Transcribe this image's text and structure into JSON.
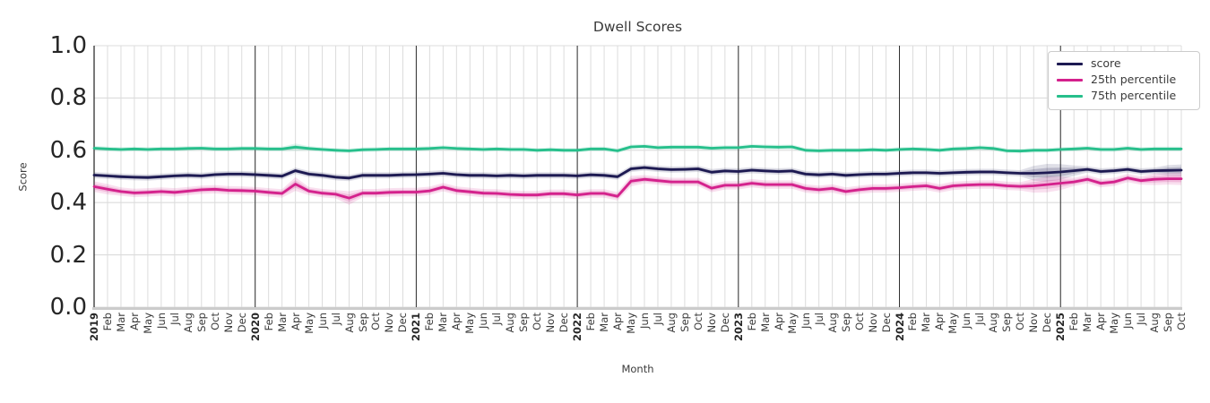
{
  "chart_data": {
    "type": "line",
    "title": "Dwell Scores",
    "xlabel": "Month",
    "ylabel": "Score",
    "ylim": [
      0.0,
      1.0
    ],
    "grid": true,
    "legend_position": "upper right",
    "ytick_labels": [
      "0.0",
      "0.2",
      "0.4",
      "0.6",
      "0.8",
      "1.0"
    ],
    "yticks": [
      0.0,
      0.2,
      0.4,
      0.6,
      0.8,
      1.0
    ],
    "x_labels": [
      "2019",
      "Feb",
      "Mar",
      "Apr",
      "May",
      "Jun",
      "Jul",
      "Aug",
      "Sep",
      "Oct",
      "Nov",
      "Dec",
      "2020",
      "Feb",
      "Mar",
      "Apr",
      "May",
      "Jun",
      "Jul",
      "Aug",
      "Sep",
      "Oct",
      "Nov",
      "Dec",
      "2021",
      "Feb",
      "Mar",
      "Apr",
      "May",
      "Jun",
      "Jul",
      "Aug",
      "Sep",
      "Oct",
      "Nov",
      "Dec",
      "2022",
      "Feb",
      "Mar",
      "Apr",
      "May",
      "Jun",
      "Jul",
      "Aug",
      "Sep",
      "Oct",
      "Nov",
      "Dec",
      "2023",
      "Feb",
      "Mar",
      "Apr",
      "May",
      "Jun",
      "Jul",
      "Aug",
      "Sep",
      "Oct",
      "Nov",
      "Dec",
      "2024",
      "Feb",
      "Mar",
      "Apr",
      "May",
      "Jun",
      "Jul",
      "Aug",
      "Sep",
      "Oct",
      "Nov",
      "Dec",
      "2025",
      "Feb",
      "Mar",
      "Apr",
      "May",
      "Jun",
      "Jul",
      "Aug",
      "Sep",
      "Oct"
    ],
    "colors": {
      "grid": "#dcdcdc",
      "year_line": "#2f2f2f",
      "axis_spine": "#303030",
      "bottom_spine": "#cbcbcb",
      "text": "#3a3a3a"
    },
    "series": [
      {
        "name": "score",
        "color": "#1d1a52",
        "band_halfwidth": 0.012,
        "band_overrides": {
          "70": 0.028,
          "71": 0.034,
          "72": 0.03,
          "73": 0.02,
          "80": 0.02,
          "81": 0.022
        },
        "values": [
          0.505,
          0.502,
          0.499,
          0.497,
          0.496,
          0.499,
          0.502,
          0.504,
          0.502,
          0.507,
          0.509,
          0.509,
          0.507,
          0.504,
          0.501,
          0.522,
          0.509,
          0.504,
          0.497,
          0.494,
          0.504,
          0.504,
          0.504,
          0.506,
          0.507,
          0.509,
          0.512,
          0.507,
          0.504,
          0.504,
          0.502,
          0.504,
          0.502,
          0.504,
          0.504,
          0.504,
          0.502,
          0.506,
          0.504,
          0.499,
          0.529,
          0.534,
          0.529,
          0.526,
          0.527,
          0.529,
          0.516,
          0.521,
          0.519,
          0.524,
          0.521,
          0.519,
          0.521,
          0.509,
          0.506,
          0.509,
          0.504,
          0.507,
          0.509,
          0.509,
          0.512,
          0.514,
          0.514,
          0.512,
          0.514,
          0.516,
          0.517,
          0.517,
          0.514,
          0.512,
          0.512,
          0.514,
          0.517,
          0.522,
          0.527,
          0.519,
          0.522,
          0.527,
          0.519,
          0.522,
          0.523,
          0.524
        ]
      },
      {
        "name": "25th percentile",
        "color": "#d4218c",
        "band_halfwidth": 0.016,
        "band_overrides": {
          "0": 0.02,
          "1": 0.02,
          "15": 0.026,
          "19": 0.026,
          "40": 0.02,
          "70": 0.026,
          "71": 0.03,
          "72": 0.026,
          "79": 0.022,
          "80": 0.022,
          "81": 0.024
        },
        "values": [
          0.461,
          0.451,
          0.442,
          0.437,
          0.439,
          0.442,
          0.439,
          0.444,
          0.449,
          0.451,
          0.447,
          0.446,
          0.444,
          0.439,
          0.435,
          0.471,
          0.444,
          0.436,
          0.432,
          0.417,
          0.436,
          0.436,
          0.439,
          0.44,
          0.44,
          0.445,
          0.459,
          0.446,
          0.441,
          0.436,
          0.435,
          0.431,
          0.429,
          0.429,
          0.434,
          0.434,
          0.429,
          0.435,
          0.435,
          0.424,
          0.482,
          0.489,
          0.484,
          0.479,
          0.479,
          0.479,
          0.455,
          0.466,
          0.466,
          0.474,
          0.469,
          0.469,
          0.469,
          0.454,
          0.449,
          0.454,
          0.442,
          0.449,
          0.454,
          0.454,
          0.457,
          0.461,
          0.464,
          0.454,
          0.464,
          0.467,
          0.469,
          0.469,
          0.464,
          0.462,
          0.464,
          0.469,
          0.474,
          0.479,
          0.489,
          0.474,
          0.479,
          0.494,
          0.484,
          0.489,
          0.491,
          0.491
        ]
      },
      {
        "name": "75th percentile",
        "color": "#26bf8b",
        "band_halfwidth": 0.009,
        "band_overrides": {
          "15": 0.014
        },
        "values": [
          0.608,
          0.605,
          0.603,
          0.605,
          0.603,
          0.605,
          0.605,
          0.607,
          0.608,
          0.605,
          0.605,
          0.607,
          0.607,
          0.605,
          0.605,
          0.612,
          0.607,
          0.603,
          0.6,
          0.598,
          0.602,
          0.603,
          0.605,
          0.605,
          0.605,
          0.607,
          0.61,
          0.607,
          0.605,
          0.603,
          0.605,
          0.603,
          0.603,
          0.6,
          0.602,
          0.6,
          0.6,
          0.605,
          0.605,
          0.598,
          0.613,
          0.615,
          0.61,
          0.612,
          0.612,
          0.612,
          0.608,
          0.61,
          0.61,
          0.615,
          0.613,
          0.612,
          0.613,
          0.6,
          0.598,
          0.6,
          0.6,
          0.6,
          0.602,
          0.6,
          0.603,
          0.605,
          0.603,
          0.6,
          0.605,
          0.607,
          0.61,
          0.607,
          0.598,
          0.597,
          0.6,
          0.6,
          0.603,
          0.605,
          0.608,
          0.603,
          0.603,
          0.608,
          0.603,
          0.605,
          0.605,
          0.605
        ]
      }
    ]
  }
}
